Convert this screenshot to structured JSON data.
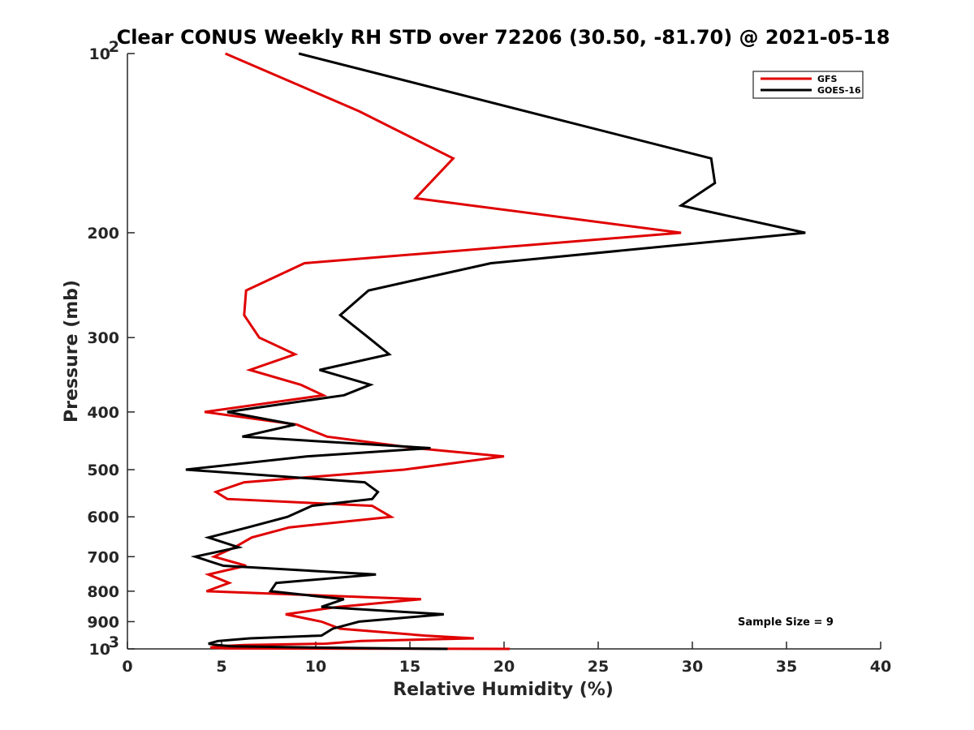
{
  "chart_data": {
    "type": "line",
    "title": "Clear CONUS Weekly RH STD over 72206 (30.50, -81.70) @ 2021-05-18",
    "xlabel": "Relative Humidity (%)",
    "ylabel": "Pressure (mb)",
    "xlim": [
      0,
      40
    ],
    "ylim": [
      100,
      1000
    ],
    "yscale": "log",
    "y_reversed": true,
    "grid": false,
    "legend_position": "top-right",
    "x_ticks": [
      "0",
      "5",
      "10",
      "15",
      "20",
      "25",
      "30",
      "35",
      "40"
    ],
    "y_ticks": [
      {
        "value": 100,
        "base": "10",
        "exp": "2"
      },
      {
        "value": 200,
        "label": "200"
      },
      {
        "value": 300,
        "label": "300"
      },
      {
        "value": 400,
        "label": "400"
      },
      {
        "value": 500,
        "label": "500"
      },
      {
        "value": 600,
        "label": "600"
      },
      {
        "value": 700,
        "label": "700"
      },
      {
        "value": 800,
        "label": "800"
      },
      {
        "value": 900,
        "label": "900"
      },
      {
        "value": 1000,
        "base": "10",
        "exp": "3"
      }
    ],
    "annotation": "Sample Size = 9",
    "series": [
      {
        "name": "GFS",
        "color": "#e00000",
        "points": [
          [
            5.2,
            100
          ],
          [
            12.3,
            125
          ],
          [
            17.3,
            150
          ],
          [
            15.3,
            175
          ],
          [
            29.4,
            200
          ],
          [
            9.4,
            225
          ],
          [
            6.3,
            250
          ],
          [
            6.2,
            275
          ],
          [
            7.0,
            300
          ],
          [
            8.9,
            320
          ],
          [
            6.5,
            340
          ],
          [
            9.2,
            360
          ],
          [
            10.4,
            375
          ],
          [
            4.1,
            400
          ],
          [
            9.0,
            420
          ],
          [
            10.6,
            440
          ],
          [
            15.3,
            460
          ],
          [
            20.0,
            475
          ],
          [
            14.7,
            500
          ],
          [
            6.2,
            525
          ],
          [
            4.7,
            545
          ],
          [
            5.3,
            560
          ],
          [
            13.0,
            575
          ],
          [
            14.0,
            600
          ],
          [
            8.6,
            625
          ],
          [
            6.6,
            650
          ],
          [
            5.7,
            675
          ],
          [
            4.6,
            700
          ],
          [
            6.3,
            725
          ],
          [
            4.3,
            750
          ],
          [
            5.4,
            775
          ],
          [
            4.2,
            800
          ],
          [
            15.6,
            825
          ],
          [
            11.2,
            850
          ],
          [
            8.4,
            875
          ],
          [
            10.3,
            900
          ],
          [
            11.3,
            925
          ],
          [
            15.8,
            950
          ],
          [
            18.4,
            960
          ],
          [
            12.4,
            970
          ],
          [
            10.5,
            980
          ],
          [
            6.2,
            985
          ],
          [
            4.8,
            990
          ],
          [
            4.4,
            995
          ],
          [
            5.3,
            998
          ],
          [
            20.3,
            1000
          ]
        ]
      },
      {
        "name": "GOES-16",
        "color": "#000000",
        "points": [
          [
            9.1,
            100
          ],
          [
            31.0,
            150
          ],
          [
            31.2,
            165
          ],
          [
            29.4,
            180
          ],
          [
            36.0,
            200
          ],
          [
            19.3,
            225
          ],
          [
            12.8,
            250
          ],
          [
            11.3,
            275
          ],
          [
            12.8,
            300
          ],
          [
            13.9,
            320
          ],
          [
            10.2,
            340
          ],
          [
            12.9,
            360
          ],
          [
            11.5,
            375
          ],
          [
            5.3,
            400
          ],
          [
            8.9,
            420
          ],
          [
            6.1,
            440
          ],
          [
            16.1,
            460
          ],
          [
            9.5,
            475
          ],
          [
            3.1,
            500
          ],
          [
            12.6,
            525
          ],
          [
            13.3,
            545
          ],
          [
            13.0,
            560
          ],
          [
            9.8,
            575
          ],
          [
            8.5,
            600
          ],
          [
            6.4,
            625
          ],
          [
            4.3,
            650
          ],
          [
            5.9,
            675
          ],
          [
            3.6,
            700
          ],
          [
            5.1,
            725
          ],
          [
            13.2,
            750
          ],
          [
            7.9,
            775
          ],
          [
            7.6,
            800
          ],
          [
            11.5,
            825
          ],
          [
            10.3,
            850
          ],
          [
            16.8,
            875
          ],
          [
            12.3,
            900
          ],
          [
            10.9,
            925
          ],
          [
            10.3,
            950
          ],
          [
            6.5,
            960
          ],
          [
            4.8,
            970
          ],
          [
            4.3,
            980
          ],
          [
            4.8,
            985
          ],
          [
            5.5,
            990
          ],
          [
            10.0,
            995
          ],
          [
            17.0,
            1000
          ]
        ]
      }
    ]
  }
}
